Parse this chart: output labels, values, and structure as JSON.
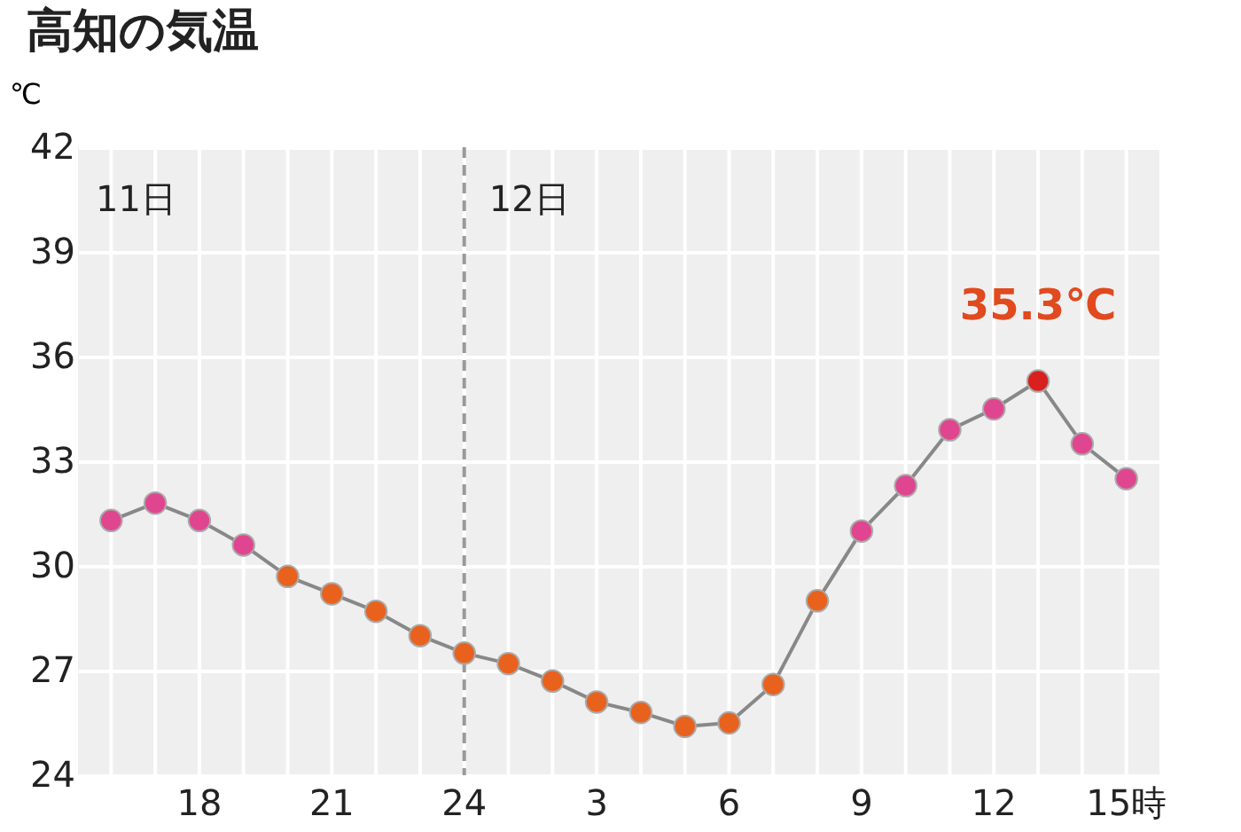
{
  "chart_data": {
    "type": "line",
    "title": "高知の気温",
    "ylabel": "℃",
    "categories": [
      null,
      null,
      "18",
      null,
      null,
      "21",
      null,
      null,
      "24",
      null,
      null,
      "3",
      null,
      null,
      "6",
      null,
      null,
      "9",
      null,
      null,
      "12",
      null,
      null,
      "15時"
    ],
    "series": [
      {
        "color": "#888888",
        "values": [
          31.3,
          31.8,
          31.3,
          30.6,
          29.7,
          29.2,
          28.7,
          28.0,
          27.5,
          27.2,
          26.7,
          26.1,
          25.8,
          25.4,
          25.5,
          26.6,
          29.0,
          31.0,
          32.3,
          33.9,
          34.5,
          35.3,
          33.5,
          32.5
        ],
        "colors": [
          "#e0468f",
          "#e0468f",
          "#e0468f",
          "#e0468f",
          "#e8621e",
          "#e8621e",
          "#e8621e",
          "#e8621e",
          "#e8621e",
          "#e8621e",
          "#e8621e",
          "#e8621e",
          "#e8621e",
          "#e8621e",
          "#e8621e",
          "#e8621e",
          "#e8621e",
          "#e0468f",
          "#e0468f",
          "#e0468f",
          "#e0468f",
          "#d8201e",
          "#e0468f",
          "#e0468f"
        ]
      }
    ],
    "ylim": [
      24,
      42
    ],
    "yticks": [
      24,
      27,
      30,
      33,
      36,
      39,
      42
    ],
    "grid": true,
    "marker": "circle",
    "line_style": "solid",
    "ref_lines": [
      {
        "axis": "x",
        "value": "24",
        "color": "#999999",
        "line_style": "dashed"
      }
    ],
    "annotations": [
      "11日",
      "12日",
      {
        "text": "35.3℃",
        "y": 35.3
      }
    ]
  }
}
